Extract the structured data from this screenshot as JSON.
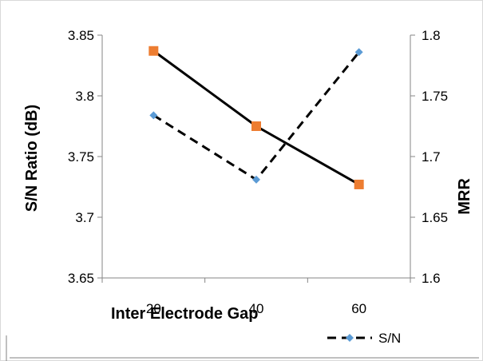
{
  "chart_data": {
    "type": "line",
    "title": "",
    "xlabel": "Inter Electrode Gap",
    "ylabel": "S/N Ratio (dB)",
    "y2label": "MRR",
    "categories": [
      "20",
      "40",
      "60"
    ],
    "ylim": [
      3.65,
      3.85
    ],
    "yticks": [
      "3.65",
      "3.7",
      "3.75",
      "3.8",
      "3.85"
    ],
    "y2lim": [
      1.6,
      1.8
    ],
    "y2ticks": [
      "1.6",
      "1.65",
      "1.7",
      "1.75",
      "1.8"
    ],
    "grid": false,
    "legend_position": "bottom-right",
    "series": [
      {
        "name": "S/N",
        "axis": "left",
        "values": [
          3.784,
          3.731,
          3.836
        ],
        "line_style": "dashed",
        "marker": "diamond",
        "line_color": "#000000",
        "marker_color": "#5b9bd5"
      },
      {
        "axis": "right",
        "values": [
          1.787,
          1.725,
          1.677
        ],
        "line_style": "solid",
        "marker": "square",
        "line_color": "#000000",
        "marker_color": "#ed7d31"
      }
    ]
  }
}
